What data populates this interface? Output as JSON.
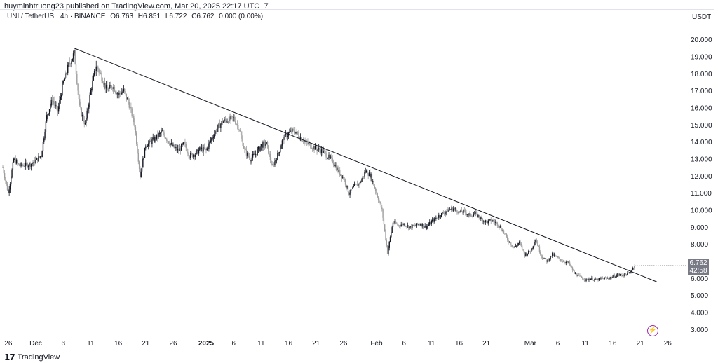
{
  "header": {
    "published": "huyminhtruong23 published on TradingView.com, Mar 20, 2025 22:17 UTC+7"
  },
  "legend": {
    "symbol": "UNI / TetherUS · 4h · BINANCE",
    "open": "O6.763",
    "high": "H6.851",
    "low": "L6.722",
    "close": "C6.762",
    "change": "0.000 (0.00%)"
  },
  "currency": "USDT",
  "price_tag": {
    "price": "6.762",
    "countdown": "42:58"
  },
  "footer": {
    "brand": "TradingView"
  },
  "colors": {
    "up": "#131722",
    "down": "#9e9e9e",
    "trendline": "#131722",
    "grid": "#f0f3fa"
  },
  "chart_data": {
    "type": "candlestick",
    "title": "",
    "xlabel": "",
    "ylabel": "",
    "ylim": [
      2.6,
      20.6
    ],
    "y_ticks": [
      "3.000",
      "4.000",
      "5.000",
      "6.000",
      "7.000",
      "8.000",
      "9.000",
      "10.000",
      "11.000",
      "12.000",
      "13.000",
      "14.000",
      "15.000",
      "16.000",
      "17.000",
      "18.000",
      "19.000",
      "20.000"
    ],
    "x_tick_labels": [
      "26",
      "Dec",
      "6",
      "11",
      "16",
      "21",
      "26",
      "2025",
      "6",
      "11",
      "16",
      "21",
      "26",
      "Feb",
      "6",
      "11",
      "16",
      "21",
      "Mar",
      "6",
      "11",
      "16",
      "21",
      "26"
    ],
    "x_tick_dates": [
      "2024-11-26",
      "2024-12-01",
      "2024-12-06",
      "2024-12-11",
      "2024-12-16",
      "2024-12-21",
      "2024-12-26",
      "2025-01-01",
      "2025-01-06",
      "2025-01-11",
      "2025-01-16",
      "2025-01-21",
      "2025-01-26",
      "2025-02-01",
      "2025-02-06",
      "2025-02-11",
      "2025-02-16",
      "2025-02-21",
      "2025-03-01",
      "2025-03-06",
      "2025-03-11",
      "2025-03-16",
      "2025-03-21",
      "2025-03-26"
    ],
    "series": [
      {
        "price_path": [
          [
            "2024-11-25",
            12.5
          ],
          [
            "2024-11-26",
            11.0
          ],
          [
            "2024-11-27",
            13.0
          ],
          [
            "2024-11-28",
            12.6
          ],
          [
            "2024-11-30",
            12.7
          ],
          [
            "2024-12-01",
            12.9
          ],
          [
            "2024-12-02",
            13.2
          ],
          [
            "2024-12-03",
            15.5
          ],
          [
            "2024-12-04",
            16.5
          ],
          [
            "2024-12-05",
            15.8
          ],
          [
            "2024-12-06",
            17.5
          ],
          [
            "2024-12-07",
            18.5
          ],
          [
            "2024-12-08",
            19.2
          ],
          [
            "2024-12-09",
            16.0
          ],
          [
            "2024-12-10",
            15.0
          ],
          [
            "2024-12-11",
            17.0
          ],
          [
            "2024-12-12",
            18.5
          ],
          [
            "2024-12-13",
            17.8
          ],
          [
            "2024-12-14",
            17.0
          ],
          [
            "2024-12-15",
            17.3
          ],
          [
            "2024-12-16",
            16.8
          ],
          [
            "2024-12-17",
            17.0
          ],
          [
            "2024-12-18",
            16.2
          ],
          [
            "2024-12-19",
            15.0
          ],
          [
            "2024-12-20",
            12.0
          ],
          [
            "2024-12-21",
            13.8
          ],
          [
            "2024-12-22",
            14.0
          ],
          [
            "2024-12-23",
            14.3
          ],
          [
            "2024-12-24",
            14.6
          ],
          [
            "2024-12-25",
            14.1
          ],
          [
            "2024-12-26",
            13.7
          ],
          [
            "2024-12-27",
            13.5
          ],
          [
            "2024-12-28",
            13.9
          ],
          [
            "2024-12-29",
            13.2
          ],
          [
            "2024-12-30",
            13.3
          ],
          [
            "2024-12-31",
            13.6
          ],
          [
            "2025-01-01",
            13.5
          ],
          [
            "2025-01-02",
            14.2
          ],
          [
            "2025-01-03",
            14.8
          ],
          [
            "2025-01-04",
            15.2
          ],
          [
            "2025-01-05",
            15.3
          ],
          [
            "2025-01-06",
            15.4
          ],
          [
            "2025-01-07",
            14.8
          ],
          [
            "2025-01-08",
            13.5
          ],
          [
            "2025-01-09",
            13.0
          ],
          [
            "2025-01-10",
            13.3
          ],
          [
            "2025-01-11",
            13.8
          ],
          [
            "2025-01-12",
            13.9
          ],
          [
            "2025-01-13",
            12.5
          ],
          [
            "2025-01-14",
            13.2
          ],
          [
            "2025-01-15",
            14.2
          ],
          [
            "2025-01-16",
            14.5
          ],
          [
            "2025-01-17",
            14.7
          ],
          [
            "2025-01-18",
            14.3
          ],
          [
            "2025-01-19",
            14.0
          ],
          [
            "2025-01-20",
            13.8
          ],
          [
            "2025-01-21",
            13.6
          ],
          [
            "2025-01-22",
            13.5
          ],
          [
            "2025-01-23",
            13.2
          ],
          [
            "2025-01-24",
            12.9
          ],
          [
            "2025-01-25",
            12.3
          ],
          [
            "2025-01-26",
            11.9
          ],
          [
            "2025-01-27",
            11.0
          ],
          [
            "2025-01-28",
            11.4
          ],
          [
            "2025-01-29",
            11.6
          ],
          [
            "2025-01-30",
            12.3
          ],
          [
            "2025-01-31",
            12.0
          ],
          [
            "2025-02-01",
            11.0
          ],
          [
            "2025-02-02",
            10.0
          ],
          [
            "2025-02-03",
            7.5
          ],
          [
            "2025-02-04",
            9.3
          ],
          [
            "2025-02-05",
            9.1
          ],
          [
            "2025-02-06",
            9.2
          ],
          [
            "2025-02-07",
            9.0
          ],
          [
            "2025-02-08",
            9.1
          ],
          [
            "2025-02-09",
            9.2
          ],
          [
            "2025-02-10",
            9.0
          ],
          [
            "2025-02-11",
            9.3
          ],
          [
            "2025-02-12",
            9.6
          ],
          [
            "2025-02-13",
            9.8
          ],
          [
            "2025-02-14",
            10.0
          ],
          [
            "2025-02-15",
            10.1
          ],
          [
            "2025-02-16",
            9.9
          ],
          [
            "2025-02-17",
            9.9
          ],
          [
            "2025-02-18",
            9.7
          ],
          [
            "2025-02-19",
            9.8
          ],
          [
            "2025-02-20",
            9.5
          ],
          [
            "2025-02-21",
            9.3
          ],
          [
            "2025-02-22",
            9.4
          ],
          [
            "2025-02-23",
            9.2
          ],
          [
            "2025-02-24",
            8.8
          ],
          [
            "2025-02-25",
            8.2
          ],
          [
            "2025-02-26",
            7.8
          ],
          [
            "2025-02-27",
            8.1
          ],
          [
            "2025-02-28",
            7.4
          ],
          [
            "2025-03-01",
            7.6
          ],
          [
            "2025-03-02",
            8.3
          ],
          [
            "2025-03-03",
            7.3
          ],
          [
            "2025-03-04",
            7.0
          ],
          [
            "2025-03-05",
            7.4
          ],
          [
            "2025-03-06",
            7.2
          ],
          [
            "2025-03-07",
            7.0
          ],
          [
            "2025-03-08",
            6.9
          ],
          [
            "2025-03-09",
            6.3
          ],
          [
            "2025-03-10",
            6.1
          ],
          [
            "2025-03-11",
            5.9
          ],
          [
            "2025-03-12",
            6.0
          ],
          [
            "2025-03-13",
            5.9
          ],
          [
            "2025-03-14",
            6.0
          ],
          [
            "2025-03-15",
            6.0
          ],
          [
            "2025-03-16",
            6.1
          ],
          [
            "2025-03-17",
            6.2
          ],
          [
            "2025-03-18",
            6.2
          ],
          [
            "2025-03-19",
            6.3
          ],
          [
            "2025-03-20",
            6.76
          ]
        ]
      }
    ],
    "trendline": {
      "from": [
        "2024-12-08",
        19.5
      ],
      "to": [
        "2025-03-24",
        5.8
      ]
    },
    "last_price": 6.762,
    "grid": false,
    "legend_position": "top-left"
  }
}
